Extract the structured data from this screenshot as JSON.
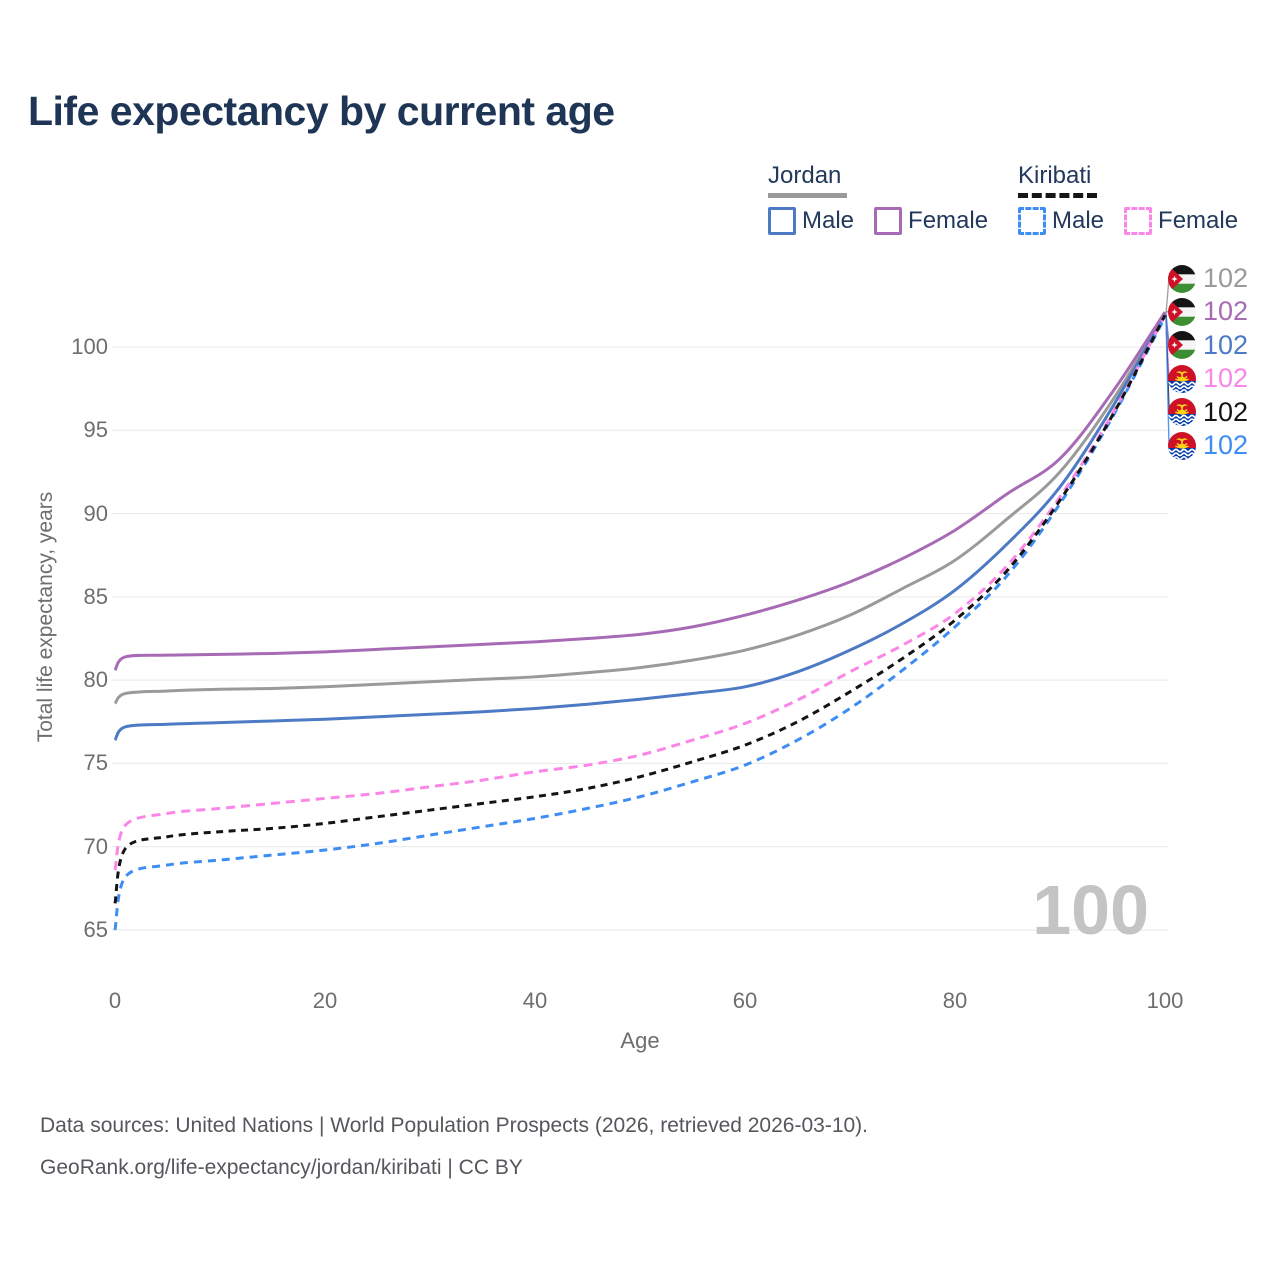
{
  "title": "Life expectancy by current age",
  "legend": {
    "jordan": {
      "label": "Jordan",
      "male": "Male",
      "female": "Female"
    },
    "kiribati": {
      "label": "Kiribati",
      "male": "Male",
      "female": "Female"
    }
  },
  "axes": {
    "xlabel": "Age",
    "ylabel": "Total life expectancy, years"
  },
  "age_counter": {
    "value": "100"
  },
  "end_labels": [
    {
      "flag": "jordan",
      "series": "Jordan, both sexes",
      "value": "102",
      "color": "#9a9a9a"
    },
    {
      "flag": "jordan",
      "series": "Jordan, female",
      "value": "102",
      "color": "#a76bb5"
    },
    {
      "flag": "jordan",
      "series": "Jordan, male",
      "value": "102",
      "color": "#4d7ac4"
    },
    {
      "flag": "kiribati",
      "series": "Kiribati, female",
      "value": "102",
      "color": "#fc86e7"
    },
    {
      "flag": "kiribati",
      "series": "Kiribati, both sexes",
      "value": "102",
      "color": "#141414"
    },
    {
      "flag": "kiribati",
      "series": "Kiribati, male",
      "value": "102",
      "color": "#3e8df2"
    }
  ],
  "footer": {
    "line1": "Data sources: United Nations | World Population Prospects (2026, retrieved 2026-03-10).",
    "line2": "GeoRank.org/life-expectancy/jordan/kiribati | CC BY"
  },
  "chart_data": {
    "type": "line",
    "title": "Life expectancy by current age",
    "xlabel": "Age",
    "ylabel": "Total life expectancy, years",
    "xlim": [
      0,
      100
    ],
    "ylim": [
      63,
      103
    ],
    "xticks": [
      0,
      20,
      40,
      60,
      80,
      100
    ],
    "yticks": [
      65,
      70,
      75,
      80,
      85,
      90,
      95,
      100
    ],
    "grid": "horizontal",
    "legend_position": "top-right",
    "x": [
      0,
      1,
      5,
      10,
      15,
      20,
      25,
      30,
      35,
      40,
      45,
      50,
      55,
      60,
      65,
      70,
      75,
      80,
      85,
      90,
      95,
      100
    ],
    "series": [
      {
        "name": "Jordan both sexes",
        "country": "Jordan",
        "sex": "both",
        "style": "solid",
        "color": "#9a9a9a",
        "dash": "",
        "values": [
          78.6,
          79.2,
          79.35,
          79.45,
          79.5,
          79.6,
          79.75,
          79.9,
          80.05,
          80.2,
          80.45,
          80.75,
          81.2,
          81.8,
          82.7,
          83.9,
          85.5,
          87.2,
          89.7,
          92.5,
          96.8,
          102.0
        ]
      },
      {
        "name": "Jordan female",
        "country": "Jordan",
        "sex": "female",
        "style": "solid",
        "color": "#a76bb5",
        "dash": "",
        "values": [
          80.6,
          81.4,
          81.5,
          81.55,
          81.6,
          81.7,
          81.85,
          82.0,
          82.15,
          82.3,
          82.5,
          82.75,
          83.2,
          83.9,
          84.8,
          85.9,
          87.3,
          89.0,
          91.2,
          93.3,
          97.3,
          102.1
        ]
      },
      {
        "name": "Jordan male",
        "country": "Jordan",
        "sex": "male",
        "style": "solid",
        "color": "#4d7ac4",
        "dash": "",
        "values": [
          76.4,
          77.2,
          77.35,
          77.45,
          77.55,
          77.65,
          77.8,
          77.95,
          78.1,
          78.3,
          78.55,
          78.85,
          79.2,
          79.6,
          80.5,
          81.8,
          83.4,
          85.4,
          88.2,
          91.6,
          96.4,
          102.0
        ]
      },
      {
        "name": "Kiribati female",
        "country": "Kiribati",
        "sex": "female",
        "style": "dashed",
        "color": "#fc86e7",
        "dash": "9 6",
        "values": [
          68.6,
          71.3,
          72.0,
          72.3,
          72.6,
          72.9,
          73.2,
          73.6,
          74.0,
          74.5,
          74.9,
          75.5,
          76.4,
          77.4,
          78.8,
          80.5,
          82.1,
          84.0,
          86.9,
          91.0,
          96.0,
          101.9
        ]
      },
      {
        "name": "Kiribati both sexes",
        "country": "Kiribati",
        "sex": "both",
        "style": "dashed",
        "color": "#141414",
        "dash": "7 5.5",
        "values": [
          66.6,
          69.9,
          70.6,
          70.9,
          71.1,
          71.4,
          71.8,
          72.2,
          72.6,
          73.0,
          73.5,
          74.2,
          75.1,
          76.1,
          77.5,
          79.3,
          81.3,
          83.6,
          86.6,
          90.8,
          95.9,
          101.9
        ]
      },
      {
        "name": "Kiribati male",
        "country": "Kiribati",
        "sex": "male",
        "style": "dashed",
        "color": "#3e8df2",
        "dash": "8 6",
        "values": [
          65.0,
          68.2,
          68.9,
          69.2,
          69.5,
          69.8,
          70.2,
          70.7,
          71.2,
          71.7,
          72.3,
          73.0,
          73.9,
          74.9,
          76.4,
          78.3,
          80.6,
          83.2,
          86.3,
          90.6,
          95.8,
          101.8
        ]
      }
    ]
  }
}
